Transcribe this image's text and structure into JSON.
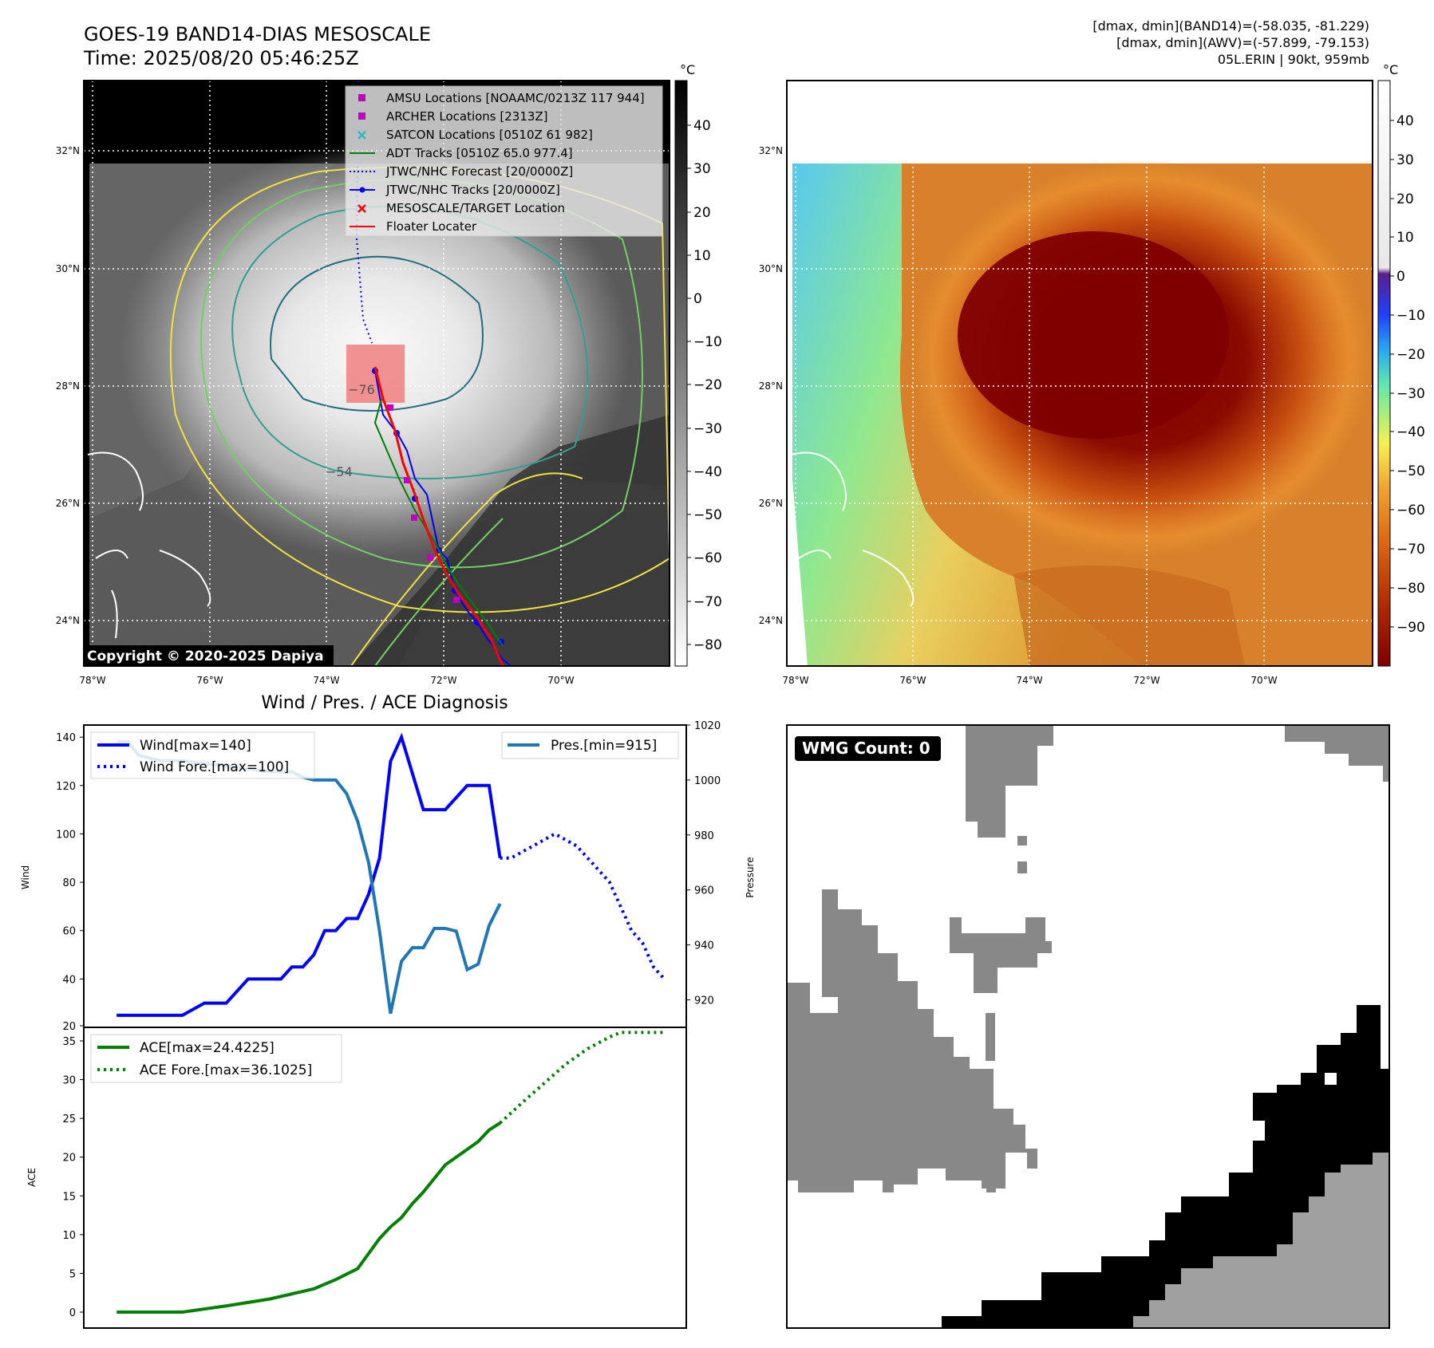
{
  "header": {
    "title": "GOES-19 BAND14-DIAS MESOSCALE",
    "time": "Time: 2025/08/20 05:46:25Z",
    "range_band14": "[dmax, dmin](BAND14)=(-58.035, -81.229)",
    "range_awv": "[dmax, dmin](AWV)=(-57.899, -79.153)",
    "storm": "05L.ERIN | 90kt, 959mb"
  },
  "map_axes": {
    "lat_labels": [
      "32°N",
      "30°N",
      "28°N",
      "26°N",
      "24°N"
    ],
    "lon_labels": [
      "78°W",
      "76°W",
      "74°W",
      "72°W",
      "70°W"
    ]
  },
  "colorbar_gray": {
    "unit": "°C",
    "ticks": [
      "40",
      "30",
      "20",
      "10",
      "0",
      "−10",
      "−20",
      "−30",
      "−40",
      "−50",
      "−60",
      "−70",
      "−80"
    ]
  },
  "colorbar_color": {
    "unit": "°C",
    "ticks": [
      "40",
      "30",
      "20",
      "10",
      "0",
      "−10",
      "−20",
      "−30",
      "−40",
      "−50",
      "−60",
      "−70",
      "−80",
      "−90"
    ]
  },
  "legend": [
    {
      "label": "AMSU Locations [NOAAMC/0213Z 117 944]",
      "marker": "square",
      "color": "#c000c0"
    },
    {
      "label": "ARCHER Locations [2313Z]",
      "marker": "square",
      "color": "#c000c0"
    },
    {
      "label": "SATCON Locations [0510Z 61 982]",
      "marker": "x",
      "color": "#20c0c0"
    },
    {
      "label": "ADT Tracks [0510Z 65.0 977.4]",
      "marker": "line",
      "color": "#008000"
    },
    {
      "label": "JTWC/NHC Forecast [20/0000Z]",
      "marker": "dotted",
      "color": "#0000ff"
    },
    {
      "label": "JTWC/NHC Tracks [20/0000Z]",
      "marker": "line-dot",
      "color": "#0000ff"
    },
    {
      "label": "MESOSCALE/TARGET Location",
      "marker": "x",
      "color": "#ff0000"
    },
    {
      "label": "Floater Locater",
      "marker": "line",
      "color": "#ff0000"
    }
  ],
  "contour_labels": [
    "−76",
    "−54"
  ],
  "copyright": "Copyright © 2020-2025 Dapiya",
  "wmg_label": "WMG Count: 0",
  "colors": {
    "wind": "#0000ff",
    "pres": "#1f77b4",
    "ace": "#008000",
    "gray_fill": "#888888",
    "light_gray": "#a0a0a0"
  },
  "chart_data": [
    {
      "type": "line",
      "title": "Wind / Pres. / ACE Diagnosis",
      "ylabel": "Wind",
      "ylabel_right": "Pressure",
      "ylim": [
        20,
        145
      ],
      "ylim_right": [
        910,
        1020
      ],
      "yticks": [
        20,
        40,
        60,
        80,
        100,
        120,
        140
      ],
      "yticks_right": [
        920,
        940,
        960,
        980,
        1000,
        1020
      ],
      "legend_left": [
        "Wind[max=140]",
        "Wind Fore.[max=100]"
      ],
      "legend_right": [
        "Pres.[min=915]"
      ],
      "series": [
        {
          "name": "Wind",
          "style": "solid",
          "x": [
            0,
            6,
            8,
            10,
            12,
            14,
            15,
            16,
            17,
            18,
            19,
            20,
            21,
            22,
            23,
            24,
            25,
            26,
            27,
            28,
            29,
            30,
            32,
            34,
            35
          ],
          "values": [
            25,
            25,
            30,
            30,
            40,
            40,
            40,
            45,
            45,
            50,
            60,
            60,
            65,
            65,
            75,
            90,
            130,
            140,
            125,
            110,
            110,
            110,
            120,
            120,
            90
          ]
        },
        {
          "name": "Wind Fore.",
          "style": "dotted",
          "x": [
            35,
            36,
            38,
            40,
            42,
            43,
            44,
            45,
            46,
            47,
            48,
            49,
            50
          ],
          "values": [
            90,
            90,
            95,
            100,
            95,
            90,
            85,
            80,
            70,
            60,
            55,
            45,
            40
          ]
        },
        {
          "name": "Pres.",
          "style": "solid",
          "x": [
            0,
            1,
            2,
            3,
            4,
            6,
            8,
            10,
            12,
            14,
            15,
            16,
            17,
            18,
            20,
            21,
            22,
            23,
            24,
            25,
            26,
            27,
            28,
            29,
            30,
            31,
            32,
            33,
            34,
            35
          ],
          "values": [
            1014,
            1014,
            1009,
            1008,
            1007,
            1007,
            1006,
            1005,
            1004,
            1003,
            1003,
            1003,
            1001,
            1000,
            1000,
            995,
            985,
            970,
            945,
            915,
            934,
            939,
            939,
            946,
            946,
            945,
            931,
            933,
            947,
            955
          ]
        }
      ]
    },
    {
      "type": "line",
      "ylabel": "ACE",
      "ylim": [
        -1,
        37
      ],
      "yticks": [
        0,
        5,
        10,
        15,
        20,
        25,
        30,
        35
      ],
      "legend": [
        "ACE[max=24.4225]",
        "ACE Fore.[max=36.1025]"
      ],
      "series": [
        {
          "name": "ACE",
          "style": "solid",
          "x": [
            0,
            6,
            10,
            14,
            18,
            20,
            22,
            24,
            25,
            26,
            27,
            28,
            30,
            32,
            33,
            34,
            35
          ],
          "values": [
            0,
            0,
            0.8,
            1.7,
            3,
            4.2,
            5.6,
            9.5,
            11,
            12.2,
            14,
            15.5,
            19,
            21,
            22,
            23.5,
            24.4
          ]
        },
        {
          "name": "ACE Fore.",
          "style": "dotted",
          "x": [
            35,
            37,
            39,
            41,
            43,
            45,
            46,
            48,
            50
          ],
          "values": [
            24.4,
            27,
            29.5,
            32,
            34,
            35.5,
            36.1,
            36.1,
            36.1
          ]
        }
      ]
    }
  ]
}
